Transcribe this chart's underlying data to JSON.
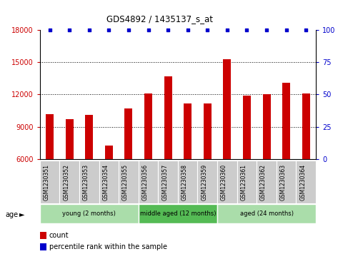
{
  "title": "GDS4892 / 1435137_s_at",
  "samples": [
    "GSM1230351",
    "GSM1230352",
    "GSM1230353",
    "GSM1230354",
    "GSM1230355",
    "GSM1230356",
    "GSM1230357",
    "GSM1230358",
    "GSM1230359",
    "GSM1230360",
    "GSM1230361",
    "GSM1230362",
    "GSM1230363",
    "GSM1230364"
  ],
  "counts": [
    10200,
    9700,
    10100,
    7300,
    10700,
    12100,
    13700,
    11200,
    11200,
    15300,
    11900,
    12000,
    13100,
    12100
  ],
  "percentile_ranks": [
    100,
    100,
    100,
    100,
    100,
    100,
    100,
    100,
    100,
    100,
    100,
    100,
    100,
    100
  ],
  "bar_color": "#cc0000",
  "dot_color": "#0000cc",
  "ylim_left": [
    6000,
    18000
  ],
  "ylim_right": [
    0,
    100
  ],
  "yticks_left": [
    6000,
    9000,
    12000,
    15000,
    18000
  ],
  "yticks_right": [
    0,
    25,
    50,
    75,
    100
  ],
  "groups": [
    {
      "label": "young (2 months)",
      "start": 0,
      "end": 5,
      "color": "#aaddaa"
    },
    {
      "label": "middle aged (12 months)",
      "start": 5,
      "end": 9,
      "color": "#55bb55"
    },
    {
      "label": "aged (24 months)",
      "start": 9,
      "end": 14,
      "color": "#aaddaa"
    }
  ],
  "group_header": "age",
  "legend_count_label": "count",
  "legend_pct_label": "percentile rank within the sample",
  "tick_color_left": "#cc0000",
  "tick_color_right": "#0000cc",
  "background_color": "#ffffff",
  "bar_bg_color": "#cccccc",
  "dotted_lines": [
    9000,
    12000,
    15000
  ],
  "bar_width": 0.4
}
